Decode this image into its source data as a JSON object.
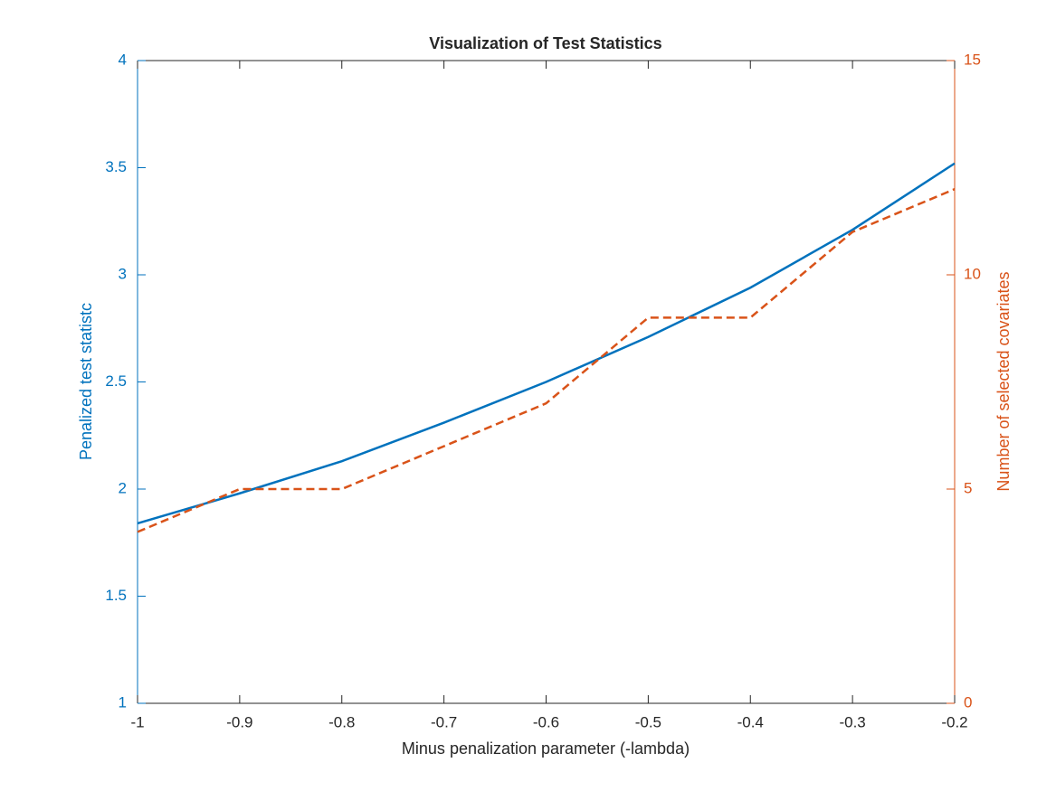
{
  "chart_data": {
    "type": "line",
    "title": "Visualization of Test Statistics",
    "xlabel": "Minus penalization parameter (-lambda)",
    "ylabel": "Penalized test statistc",
    "y2label": "Number of selected covariates",
    "x": [
      -1,
      -0.9,
      -0.8,
      -0.7,
      -0.6,
      -0.5,
      -0.4,
      -0.3,
      -0.2
    ],
    "series": [
      {
        "color": "#0072bd",
        "linestyle": "solid",
        "values": [
          1.84,
          1.98,
          2.13,
          2.31,
          2.5,
          2.71,
          2.94,
          3.21,
          3.52
        ]
      },
      {
        "color": "#d95319",
        "linestyle": "dashed",
        "axis": "y2",
        "values": [
          4,
          5,
          5,
          6,
          7,
          9,
          9,
          11,
          12
        ]
      }
    ],
    "xlim": [
      -1,
      -0.2
    ],
    "xticks": [
      -1,
      -0.9,
      -0.8,
      -0.7,
      -0.6,
      -0.5,
      -0.4,
      -0.3,
      -0.2
    ],
    "ylim": [
      1,
      4
    ],
    "yticks": [
      1,
      1.5,
      2,
      2.5,
      3,
      3.5,
      4
    ],
    "y2lim": [
      0,
      15
    ],
    "y2ticks": [
      0,
      5,
      10,
      15
    ],
    "ycolor": "#0072bd",
    "y2color": "#d95319",
    "grid": false
  }
}
